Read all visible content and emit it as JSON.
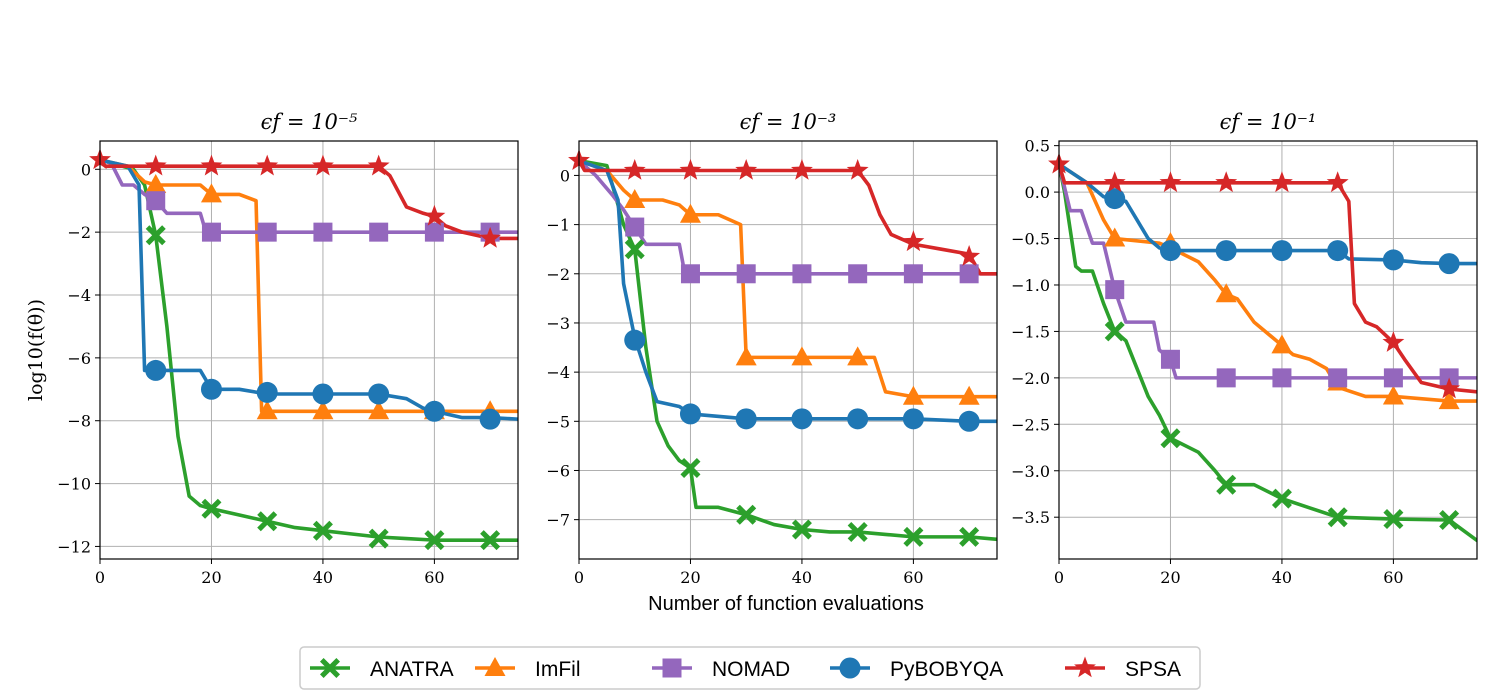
{
  "colors": {
    "ANATRA": "#2ca02c",
    "ImFil": "#ff7f0e",
    "NOMAD": "#9467bd",
    "PyBOBYQA": "#1f77b4",
    "SPSA": "#d62728",
    "grid": "#b0b0b0"
  },
  "figure": {
    "xlabel": "Number of function evaluations",
    "ylabel": "log10(f(θ))"
  },
  "legend": {
    "placement": "bottom-center",
    "entries": [
      {
        "name": "ANATRA",
        "marker": "X"
      },
      {
        "name": "ImFil",
        "marker": "triangle"
      },
      {
        "name": "NOMAD",
        "marker": "square"
      },
      {
        "name": "PyBOBYQA",
        "marker": "circle"
      },
      {
        "name": "SPSA",
        "marker": "star"
      }
    ]
  },
  "chart_data": [
    {
      "type": "line",
      "title": "ϵf = 10⁻⁵",
      "xlim": [
        0,
        75
      ],
      "ylim": [
        -12.4,
        0.9
      ],
      "xticks": [
        0,
        20,
        40,
        60
      ],
      "yticks": [
        0,
        -2,
        -4,
        -6,
        -8,
        -10,
        -12
      ],
      "ytick_labels": [
        "0",
        "−2",
        "−4",
        "−6",
        "−8",
        "−10",
        "−12"
      ],
      "grid": true,
      "series": [
        {
          "name": "ANATRA",
          "x": [
            0,
            6,
            8,
            10,
            12,
            14,
            16,
            18,
            20,
            25,
            30,
            35,
            40,
            45,
            50,
            55,
            60,
            70,
            75
          ],
          "y": [
            0.3,
            0.0,
            -0.5,
            -2.1,
            -5.0,
            -8.5,
            -10.4,
            -10.7,
            -10.8,
            -11.0,
            -11.2,
            -11.4,
            -11.5,
            -11.6,
            -11.7,
            -11.75,
            -11.8,
            -11.8,
            -11.8
          ],
          "marker_x": [
            10,
            20,
            30,
            40,
            50,
            60,
            70
          ],
          "marker_y": [
            -2.1,
            -10.8,
            -11.2,
            -11.5,
            -11.75,
            -11.8,
            -11.8
          ]
        },
        {
          "name": "ImFil",
          "x": [
            0,
            5,
            8,
            10,
            12,
            18,
            20,
            25,
            28,
            29,
            30,
            40,
            50,
            60,
            70,
            75
          ],
          "y": [
            0.3,
            0.1,
            -0.4,
            -0.5,
            -0.5,
            -0.5,
            -0.8,
            -0.8,
            -1.0,
            -7.7,
            -7.7,
            -7.7,
            -7.7,
            -7.7,
            -7.7,
            -7.7
          ],
          "marker_x": [
            10,
            20,
            30,
            40,
            50,
            60,
            70
          ],
          "marker_y": [
            -0.5,
            -0.8,
            -7.7,
            -7.7,
            -7.7,
            -7.7,
            -7.7
          ]
        },
        {
          "name": "NOMAD",
          "x": [
            0,
            2,
            4,
            6,
            8,
            10,
            12,
            18,
            19,
            20,
            30,
            40,
            50,
            60,
            70,
            75
          ],
          "y": [
            0.3,
            0.2,
            -0.5,
            -0.5,
            -0.8,
            -1.0,
            -1.4,
            -1.4,
            -2.0,
            -2.0,
            -2.0,
            -2.0,
            -2.0,
            -2.0,
            -2.0,
            -2.0
          ],
          "marker_x": [
            10,
            20,
            30,
            40,
            50,
            60,
            70
          ],
          "marker_y": [
            -1.0,
            -2.0,
            -2.0,
            -2.0,
            -2.0,
            -2.0,
            -2.0
          ]
        },
        {
          "name": "PyBOBYQA",
          "x": [
            0,
            5,
            7,
            8,
            10,
            18,
            20,
            25,
            30,
            40,
            50,
            55,
            58,
            60,
            65,
            70,
            75
          ],
          "y": [
            0.3,
            0.1,
            -0.5,
            -6.4,
            -6.4,
            -6.4,
            -7.0,
            -7.0,
            -7.15,
            -7.15,
            -7.15,
            -7.3,
            -7.6,
            -7.7,
            -7.9,
            -7.9,
            -7.95
          ],
          "marker_x": [
            10,
            20,
            30,
            40,
            50,
            60,
            70
          ],
          "marker_y": [
            -6.4,
            -7.0,
            -7.1,
            -7.15,
            -7.15,
            -7.7,
            -7.95
          ]
        },
        {
          "name": "SPSA",
          "x": [
            0,
            1,
            10,
            20,
            30,
            40,
            50,
            52,
            55,
            58,
            60,
            62,
            65,
            70,
            75
          ],
          "y": [
            0.3,
            0.1,
            0.1,
            0.1,
            0.1,
            0.1,
            0.1,
            -0.2,
            -1.2,
            -1.4,
            -1.5,
            -1.8,
            -2.0,
            -2.2,
            -2.2
          ],
          "marker_x": [
            0,
            10,
            20,
            30,
            40,
            50,
            60,
            70
          ],
          "marker_y": [
            0.3,
            0.1,
            0.1,
            0.1,
            0.1,
            0.1,
            -1.5,
            -2.2
          ]
        }
      ]
    },
    {
      "type": "line",
      "title": "ϵf = 10⁻³",
      "xlim": [
        0,
        75
      ],
      "ylim": [
        -7.8,
        0.7
      ],
      "xticks": [
        0,
        20,
        40,
        60
      ],
      "yticks": [
        0,
        -1,
        -2,
        -3,
        -4,
        -5,
        -6,
        -7
      ],
      "ytick_labels": [
        "0",
        "−1",
        "−2",
        "−3",
        "−4",
        "−5",
        "−6",
        "−7"
      ],
      "grid": true,
      "series": [
        {
          "name": "ANATRA",
          "x": [
            0,
            5,
            8,
            10,
            12,
            14,
            16,
            18,
            20,
            21,
            25,
            30,
            35,
            40,
            45,
            50,
            55,
            60,
            70,
            75
          ],
          "y": [
            0.3,
            0.2,
            -1.0,
            -1.5,
            -3.5,
            -5.0,
            -5.5,
            -5.8,
            -5.95,
            -6.75,
            -6.75,
            -6.9,
            -7.1,
            -7.2,
            -7.25,
            -7.25,
            -7.3,
            -7.35,
            -7.35,
            -7.4
          ],
          "marker_x": [
            10,
            20,
            30,
            40,
            50,
            60,
            70
          ],
          "marker_y": [
            -1.5,
            -5.95,
            -6.9,
            -7.2,
            -7.25,
            -7.35,
            -7.35
          ]
        },
        {
          "name": "ImFil",
          "x": [
            0,
            5,
            8,
            10,
            15,
            18,
            20,
            25,
            29,
            30,
            40,
            50,
            53,
            55,
            60,
            70,
            75
          ],
          "y": [
            0.3,
            0.1,
            -0.3,
            -0.5,
            -0.5,
            -0.6,
            -0.8,
            -0.8,
            -1.0,
            -3.7,
            -3.7,
            -3.7,
            -3.7,
            -4.4,
            -4.5,
            -4.5,
            -4.5
          ],
          "marker_x": [
            10,
            20,
            30,
            40,
            50,
            60,
            70
          ],
          "marker_y": [
            -0.5,
            -0.8,
            -3.7,
            -3.7,
            -3.7,
            -4.5,
            -4.5
          ]
        },
        {
          "name": "NOMAD",
          "x": [
            0,
            3,
            6,
            8,
            10,
            12,
            18,
            19,
            20,
            30,
            40,
            50,
            60,
            70,
            75
          ],
          "y": [
            0.3,
            0.0,
            -0.4,
            -0.7,
            -1.05,
            -1.4,
            -1.4,
            -2.0,
            -2.0,
            -2.0,
            -2.0,
            -2.0,
            -2.0,
            -2.0,
            -2.0
          ],
          "marker_x": [
            10,
            20,
            30,
            40,
            50,
            60,
            70
          ],
          "marker_y": [
            -1.05,
            -2.0,
            -2.0,
            -2.0,
            -2.0,
            -2.0,
            -2.0
          ]
        },
        {
          "name": "PyBOBYQA",
          "x": [
            0,
            5,
            7,
            8,
            10,
            12,
            14,
            18,
            20,
            30,
            40,
            50,
            60,
            70,
            75
          ],
          "y": [
            0.3,
            0.1,
            -0.5,
            -2.2,
            -3.3,
            -4.0,
            -4.6,
            -4.7,
            -4.85,
            -4.95,
            -4.95,
            -4.95,
            -4.95,
            -5.0,
            -5.0
          ],
          "marker_x": [
            10,
            20,
            30,
            40,
            50,
            60,
            70
          ],
          "marker_y": [
            -3.35,
            -4.85,
            -4.95,
            -4.95,
            -4.95,
            -4.95,
            -5.0
          ]
        },
        {
          "name": "SPSA",
          "x": [
            0,
            1,
            10,
            20,
            30,
            40,
            50,
            52,
            54,
            56,
            60,
            65,
            70,
            72,
            75
          ],
          "y": [
            0.3,
            0.1,
            0.1,
            0.1,
            0.1,
            0.1,
            0.1,
            -0.2,
            -0.8,
            -1.2,
            -1.4,
            -1.5,
            -1.6,
            -2.0,
            -2.0
          ],
          "marker_x": [
            0,
            10,
            20,
            30,
            40,
            50,
            60,
            70
          ],
          "marker_y": [
            0.3,
            0.1,
            0.1,
            0.1,
            0.1,
            0.1,
            -1.35,
            -1.65
          ]
        }
      ]
    },
    {
      "type": "line",
      "title": "ϵf = 10⁻¹",
      "xlim": [
        0,
        75
      ],
      "ylim": [
        -3.95,
        0.55
      ],
      "xticks": [
        0,
        20,
        40,
        60
      ],
      "yticks": [
        0.5,
        0.0,
        -0.5,
        -1.0,
        -1.5,
        -2.0,
        -2.5,
        -3.0,
        -3.5
      ],
      "ytick_labels": [
        "0.5",
        "0.0",
        "−0.5",
        "−1.0",
        "−1.5",
        "−2.0",
        "−2.5",
        "−3.0",
        "−3.5"
      ],
      "grid": true,
      "series": [
        {
          "name": "ANATRA",
          "x": [
            0,
            1,
            2,
            3,
            4,
            6,
            8,
            10,
            12,
            14,
            16,
            18,
            20,
            25,
            28,
            30,
            35,
            40,
            45,
            50,
            60,
            70,
            75
          ],
          "y": [
            0.3,
            0.0,
            -0.4,
            -0.8,
            -0.85,
            -0.85,
            -1.2,
            -1.5,
            -1.6,
            -1.9,
            -2.2,
            -2.4,
            -2.65,
            -2.8,
            -3.0,
            -3.15,
            -3.15,
            -3.3,
            -3.4,
            -3.5,
            -3.52,
            -3.53,
            -3.75
          ],
          "marker_x": [
            10,
            20,
            30,
            40,
            50,
            60,
            70
          ],
          "marker_y": [
            -1.5,
            -2.65,
            -3.15,
            -3.3,
            -3.5,
            -3.52,
            -3.53
          ]
        },
        {
          "name": "ImFil",
          "x": [
            0,
            5,
            8,
            10,
            18,
            20,
            25,
            28,
            30,
            32,
            35,
            38,
            40,
            42,
            45,
            48,
            50,
            55,
            60,
            70,
            75
          ],
          "y": [
            0.3,
            0.1,
            -0.3,
            -0.5,
            -0.55,
            -0.6,
            -0.75,
            -0.95,
            -1.1,
            -1.15,
            -1.4,
            -1.55,
            -1.65,
            -1.75,
            -1.8,
            -1.9,
            -2.1,
            -2.2,
            -2.2,
            -2.25,
            -2.25
          ],
          "marker_x": [
            10,
            20,
            30,
            40,
            50,
            60,
            70
          ],
          "marker_y": [
            -0.5,
            -0.55,
            -1.1,
            -1.65,
            -2.05,
            -2.2,
            -2.25
          ]
        },
        {
          "name": "NOMAD",
          "x": [
            0,
            2,
            4,
            6,
            8,
            10,
            12,
            17,
            18,
            20,
            21,
            30,
            40,
            50,
            60,
            70,
            75
          ],
          "y": [
            0.3,
            -0.2,
            -0.2,
            -0.55,
            -0.55,
            -1.05,
            -1.4,
            -1.4,
            -1.7,
            -1.8,
            -2.0,
            -2.0,
            -2.0,
            -2.0,
            -2.0,
            -2.0,
            -2.0
          ],
          "marker_x": [
            10,
            20,
            30,
            40,
            50,
            60,
            70
          ],
          "marker_y": [
            -1.05,
            -1.8,
            -2.0,
            -2.0,
            -2.0,
            -2.0,
            -2.0
          ]
        },
        {
          "name": "PyBOBYQA",
          "x": [
            0,
            5,
            8,
            10,
            12,
            14,
            16,
            18,
            20,
            30,
            40,
            50,
            52,
            60,
            65,
            70,
            75
          ],
          "y": [
            0.3,
            0.1,
            -0.05,
            -0.07,
            -0.1,
            -0.3,
            -0.5,
            -0.6,
            -0.63,
            -0.63,
            -0.63,
            -0.63,
            -0.72,
            -0.73,
            -0.76,
            -0.77,
            -0.77
          ],
          "marker_x": [
            10,
            20,
            30,
            40,
            50,
            60,
            70
          ],
          "marker_y": [
            -0.07,
            -0.63,
            -0.63,
            -0.63,
            -0.63,
            -0.73,
            -0.77
          ]
        },
        {
          "name": "SPSA",
          "x": [
            0,
            1,
            10,
            20,
            30,
            40,
            50,
            52,
            53,
            55,
            57,
            60,
            62,
            65,
            70,
            75
          ],
          "y": [
            0.3,
            0.1,
            0.1,
            0.1,
            0.1,
            0.1,
            0.1,
            -0.1,
            -1.2,
            -1.4,
            -1.45,
            -1.62,
            -1.8,
            -2.05,
            -2.12,
            -2.15
          ],
          "marker_x": [
            0,
            10,
            20,
            30,
            40,
            50,
            60,
            70
          ],
          "marker_y": [
            0.3,
            0.1,
            0.1,
            0.1,
            0.1,
            0.1,
            -1.62,
            -2.12
          ]
        }
      ]
    }
  ]
}
